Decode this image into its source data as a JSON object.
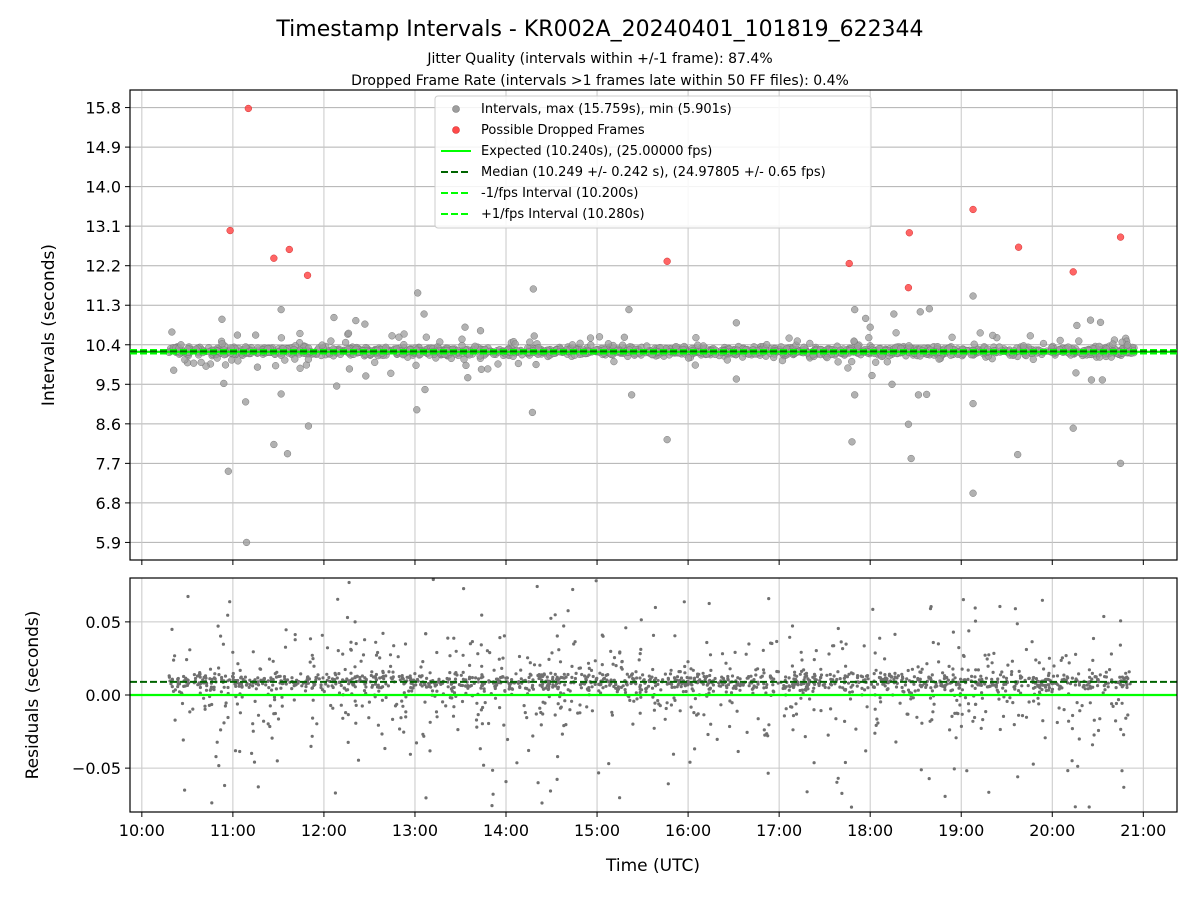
{
  "figure": {
    "title": "Timestamp Intervals - KR002A_20240401_101819_622344",
    "subtitle_1": "Jitter Quality (intervals within +/-1 frame): 87.4%",
    "subtitle_2": "Dropped Frame Rate (intervals >1 frames late within 50 FF files): 0.4%"
  },
  "colors": {
    "intervals": "#9e9e9e",
    "dropped": "#ff4a4a",
    "expected": "#00ff00",
    "median": "#006400",
    "residuals": "#707070"
  },
  "chart_data": [
    {
      "type": "scatter",
      "name": "intervals-panel",
      "xlabel": "",
      "ylabel": "Intervals (seconds)",
      "x_unit": "hours (UTC)",
      "xlim": [
        9.87,
        21.37
      ],
      "ylim": [
        5.5,
        16.2
      ],
      "yticks": [
        5.9,
        6.8,
        7.7,
        8.6,
        9.5,
        10.4,
        11.3,
        12.2,
        13.1,
        14.0,
        14.9,
        15.8
      ],
      "ytick_labels": [
        "5.9",
        "6.8",
        "7.7",
        "8.6",
        "9.5",
        "10.4",
        "11.3",
        "12.2",
        "13.1",
        "14.0",
        "14.9",
        "15.8"
      ],
      "grid": true,
      "legend_position": "top-center",
      "legend": [
        "Intervals, max (15.759s), min (5.901s)",
        "Possible Dropped Frames",
        "Expected (10.240s), (25.00000 fps)",
        "Median (10.249 +/- 0.242 s), (24.97805 +/- 0.65 fps)",
        "-1/fps Interval (10.200s)",
        "+1/fps Interval (10.280s)"
      ],
      "lines": {
        "expected": 10.24,
        "median": 10.249,
        "minus_one_frame": 10.2,
        "plus_one_frame": 10.28
      },
      "series": [
        {
          "name": "Intervals, max (15.759s), min (5.901s)",
          "points": [
            [
              10.33,
              10.69
            ],
            [
              10.35,
              9.82
            ],
            [
              10.43,
              10.4
            ],
            [
              10.88,
              10.98
            ],
            [
              10.9,
              9.52
            ],
            [
              10.95,
              7.52
            ],
            [
              11.05,
              10.62
            ],
            [
              11.14,
              9.1
            ],
            [
              11.15,
              5.9
            ],
            [
              11.25,
              10.62
            ],
            [
              11.27,
              9.89
            ],
            [
              11.45,
              8.13
            ],
            [
              11.53,
              11.2
            ],
            [
              11.53,
              9.28
            ],
            [
              11.6,
              7.92
            ],
            [
              11.83,
              8.55
            ],
            [
              12.11,
              11.02
            ],
            [
              12.14,
              9.46
            ],
            [
              12.27,
              10.66
            ],
            [
              12.35,
              10.95
            ],
            [
              12.28,
              9.85
            ],
            [
              12.45,
              10.87
            ],
            [
              12.46,
              9.69
            ],
            [
              13.03,
              11.58
            ],
            [
              13.02,
              8.92
            ],
            [
              13.1,
              11.1
            ],
            [
              13.11,
              9.38
            ],
            [
              13.55,
              10.8
            ],
            [
              13.56,
              9.93
            ],
            [
              13.58,
              9.65
            ],
            [
              13.72,
              10.72
            ],
            [
              13.73,
              9.84
            ],
            [
              14.3,
              11.67
            ],
            [
              14.29,
              8.86
            ],
            [
              14.31,
              10.6
            ],
            [
              14.33,
              9.95
            ],
            [
              15.35,
              11.2
            ],
            [
              15.38,
              9.26
            ],
            [
              15.3,
              10.57
            ],
            [
              15.77,
              8.24
            ],
            [
              16.53,
              10.9
            ],
            [
              16.53,
              9.62
            ],
            [
              17.8,
              8.19
            ],
            [
              17.83,
              11.2
            ],
            [
              17.83,
              9.26
            ],
            [
              17.95,
              11.0
            ],
            [
              18.0,
              10.8
            ],
            [
              18.02,
              9.7
            ],
            [
              18.24,
              9.5
            ],
            [
              18.26,
              11.1
            ],
            [
              18.42,
              8.59
            ],
            [
              18.45,
              7.81
            ],
            [
              18.53,
              9.26
            ],
            [
              18.62,
              9.27
            ],
            [
              18.65,
              11.22
            ],
            [
              18.55,
              11.15
            ],
            [
              19.13,
              11.51
            ],
            [
              19.13,
              9.06
            ],
            [
              19.13,
              7.02
            ],
            [
              19.62,
              7.9
            ],
            [
              20.23,
              8.5
            ],
            [
              20.27,
              10.84
            ],
            [
              20.26,
              9.76
            ],
            [
              20.33,
              10.2
            ],
            [
              20.42,
              10.96
            ],
            [
              20.43,
              9.6
            ],
            [
              20.53,
              10.91
            ],
            [
              20.55,
              9.6
            ],
            [
              20.75,
              7.7
            ]
          ]
        },
        {
          "name": "Possible Dropped Frames",
          "points": [
            [
              10.97,
              13.0
            ],
            [
              11.17,
              15.78
            ],
            [
              11.45,
              12.37
            ],
            [
              11.62,
              12.57
            ],
            [
              11.82,
              11.98
            ],
            [
              15.77,
              12.3
            ],
            [
              17.77,
              12.25
            ],
            [
              18.43,
              12.95
            ],
            [
              18.42,
              11.7
            ],
            [
              19.13,
              13.48
            ],
            [
              19.63,
              12.62
            ],
            [
              20.23,
              12.06
            ],
            [
              20.75,
              12.85
            ]
          ]
        }
      ]
    },
    {
      "type": "scatter",
      "name": "residuals-panel",
      "xlabel": "Time (UTC)",
      "ylabel": "Residuals (seconds)",
      "xlim": [
        9.87,
        21.37
      ],
      "ylim": [
        -0.08,
        0.08
      ],
      "xticks": [
        10,
        11,
        12,
        13,
        14,
        15,
        16,
        17,
        18,
        19,
        20,
        21
      ],
      "xtick_labels": [
        "10:00",
        "11:00",
        "12:00",
        "13:00",
        "14:00",
        "15:00",
        "16:00",
        "17:00",
        "18:00",
        "19:00",
        "20:00",
        "21:00"
      ],
      "yticks": [
        -0.05,
        0.0,
        0.05
      ],
      "ytick_labels": [
        "−0.05",
        "0.00",
        "0.05"
      ],
      "grid": true,
      "lines": {
        "zero": 0.0,
        "median_offset": 0.009
      },
      "x_range": [
        10.3,
        20.9
      ],
      "point_count": 1880,
      "distribution": "dense band centered near 0.009 s with scatter spread between -0.08 and 0.08 s"
    }
  ]
}
